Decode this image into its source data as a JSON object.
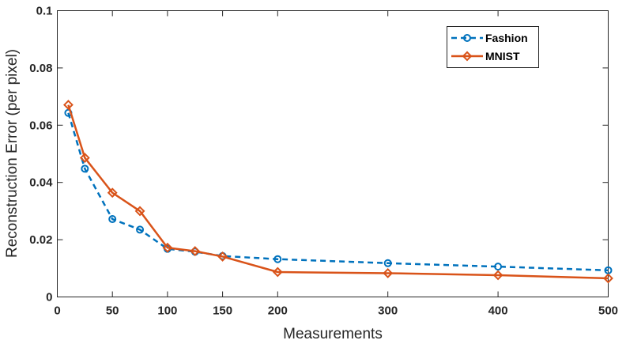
{
  "chart_data": {
    "type": "line",
    "title": "",
    "xlabel": "Measurements",
    "ylabel": "Reconstruction Error (per pixel)",
    "xlim": [
      0,
      500
    ],
    "ylim": [
      0,
      0.1
    ],
    "xticks": [
      0,
      50,
      100,
      150,
      200,
      300,
      400,
      500
    ],
    "yticks": [
      0,
      0.02,
      0.04,
      0.06,
      0.08,
      0.1
    ],
    "xtick_labels": [
      "0",
      "50",
      "100",
      "150",
      "200",
      "300",
      "400",
      "500"
    ],
    "ytick_labels": [
      "0",
      "0.02",
      "0.04",
      "0.06",
      "0.08",
      "0.1"
    ],
    "grid": false,
    "legend_position": "top-right",
    "series": [
      {
        "name": "Fashion",
        "color": "#0072BD",
        "line_style": "dashed",
        "marker": "circle",
        "x": [
          10,
          25,
          50,
          75,
          100,
          125,
          150,
          200,
          300,
          400,
          500
        ],
        "y": [
          0.0643,
          0.0448,
          0.0272,
          0.0235,
          0.0168,
          0.0158,
          0.0143,
          0.0132,
          0.0118,
          0.0106,
          0.0093
        ]
      },
      {
        "name": "MNIST",
        "color": "#D95319",
        "line_style": "solid",
        "marker": "diamond",
        "x": [
          10,
          25,
          50,
          75,
          100,
          125,
          150,
          200,
          300,
          400,
          500
        ],
        "y": [
          0.0671,
          0.0486,
          0.0364,
          0.03,
          0.0172,
          0.016,
          0.0141,
          0.0087,
          0.0083,
          0.0076,
          0.0065
        ]
      }
    ]
  }
}
